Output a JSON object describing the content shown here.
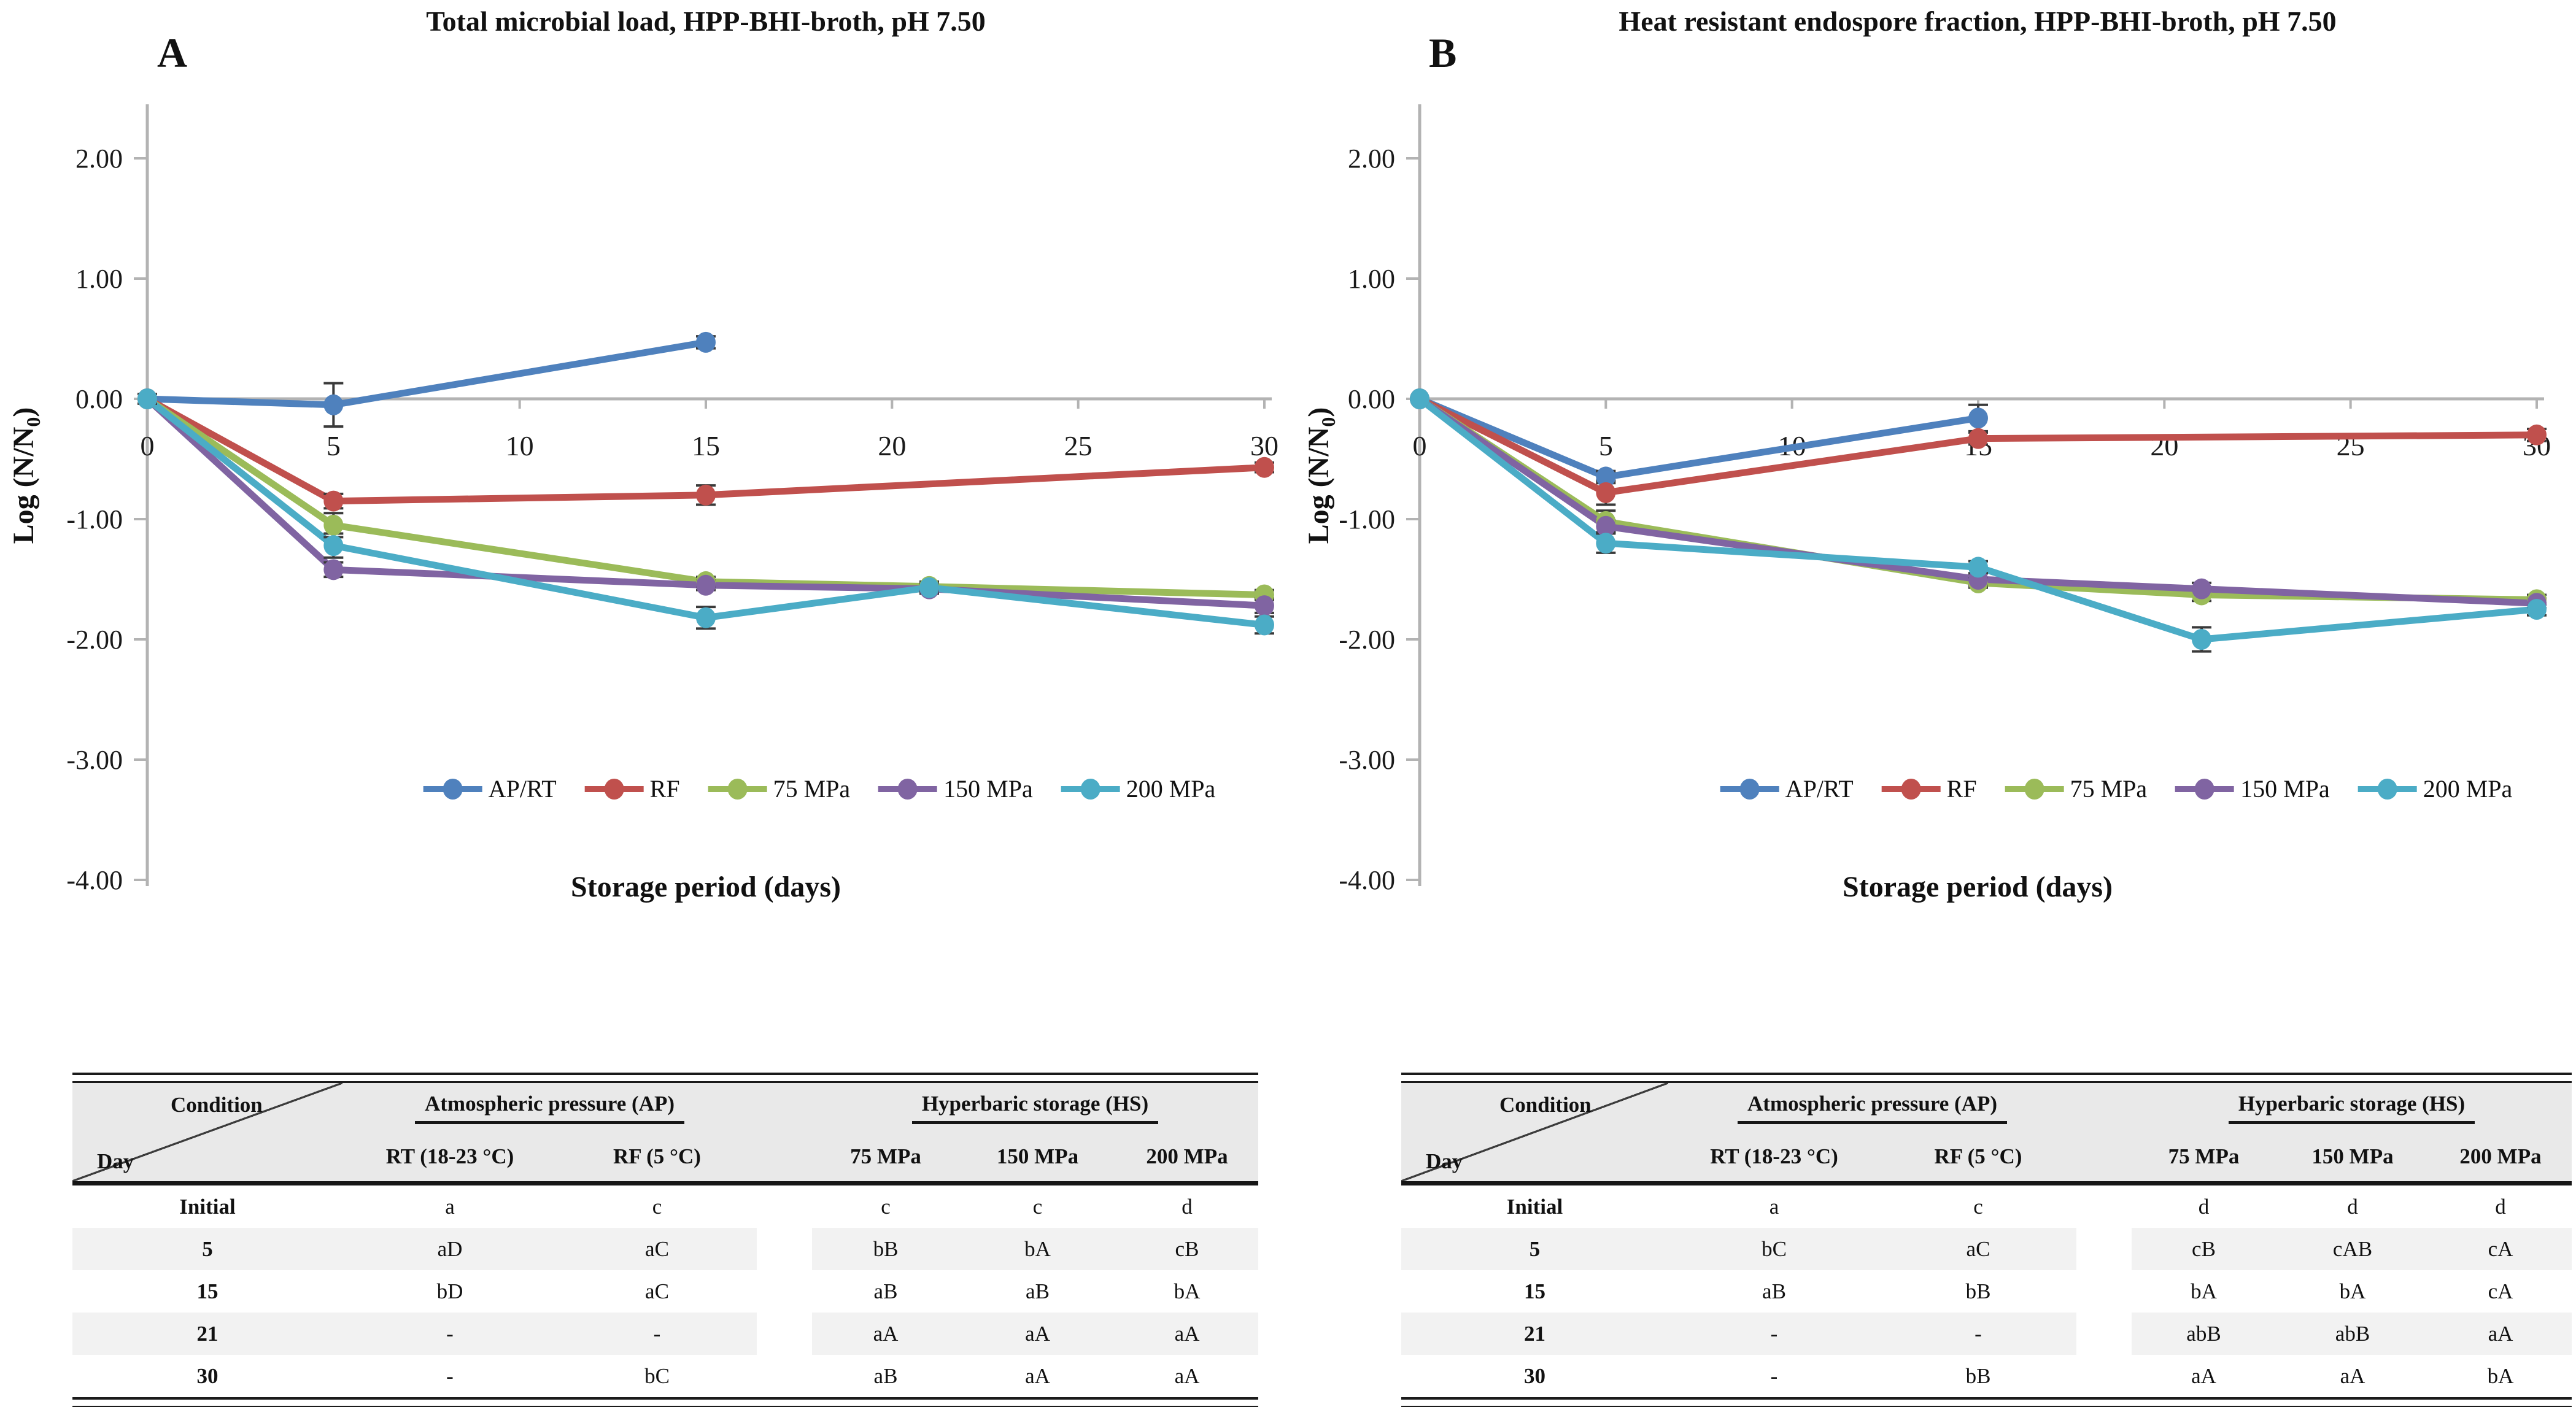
{
  "chart_data": [
    {
      "type": "line",
      "panel_label": "A",
      "title": "Total microbial load, HPP-BHI-broth, pH 7.50",
      "xlabel": "Storage period (days)",
      "ylabel": {
        "pre": "Log (N/N",
        "sub": "0",
        "post": ")"
      },
      "xlim": [
        0,
        30
      ],
      "ylim": [
        -4.0,
        2.6
      ],
      "x_ticks": [
        0,
        5,
        10,
        15,
        20,
        25,
        30
      ],
      "y_ticks": [
        "2.00",
        "1.00",
        "0.00",
        "-1.00",
        "-2.00",
        "-3.00",
        "-4.00"
      ],
      "grid": false,
      "legend_position": "bottom-center",
      "axis_color": "#B3B3B3",
      "error_bar_color": "#3a3a3a",
      "series": [
        {
          "name": "AP/RT",
          "color": "#4F81BD",
          "x": [
            0,
            5,
            15
          ],
          "y": [
            0.0,
            -0.05,
            0.47
          ],
          "err": [
            0.04,
            0.18,
            0.05
          ]
        },
        {
          "name": "RF",
          "color": "#C0504D",
          "x": [
            0,
            5,
            15,
            30
          ],
          "y": [
            0.0,
            -0.85,
            -0.8,
            -0.57
          ],
          "err": [
            0,
            0.06,
            0.08,
            0.04
          ]
        },
        {
          "name": "75 MPa",
          "color": "#9BBB59",
          "x": [
            0,
            5,
            15,
            21,
            30
          ],
          "y": [
            0.0,
            -1.05,
            -1.52,
            -1.56,
            -1.63
          ],
          "err": [
            0,
            0.1,
            0.04,
            0.04,
            0.04
          ]
        },
        {
          "name": "150 MPa",
          "color": "#8064A2",
          "x": [
            0,
            5,
            15,
            21,
            30
          ],
          "y": [
            0.0,
            -1.42,
            -1.55,
            -1.58,
            -1.72
          ],
          "err": [
            0,
            0.06,
            0.04,
            0.04,
            0.06
          ]
        },
        {
          "name": "200 MPa",
          "color": "#4BACC6",
          "x": [
            0,
            5,
            15,
            21,
            30
          ],
          "y": [
            0.0,
            -1.22,
            -1.82,
            -1.57,
            -1.88
          ],
          "err": [
            0,
            0.1,
            0.09,
            0.04,
            0.07
          ]
        }
      ]
    },
    {
      "type": "line",
      "panel_label": "B",
      "title": "Heat resistant endospore fraction, HPP-BHI-broth, pH 7.50",
      "xlabel": "Storage period (days)",
      "ylabel": {
        "pre": "Log (N/N",
        "sub": "0",
        "post": ")"
      },
      "xlim": [
        0,
        30
      ],
      "ylim": [
        -4.0,
        2.6
      ],
      "x_ticks": [
        0,
        5,
        10,
        15,
        20,
        25,
        30
      ],
      "y_ticks": [
        "2.00",
        "1.00",
        "0.00",
        "-1.00",
        "-2.00",
        "-3.00",
        "-4.00"
      ],
      "grid": false,
      "legend_position": "bottom-center",
      "axis_color": "#B3B3B3",
      "error_bar_color": "#3a3a3a",
      "series": [
        {
          "name": "AP/RT",
          "color": "#4F81BD",
          "x": [
            0,
            5,
            15
          ],
          "y": [
            0.0,
            -0.65,
            -0.16
          ],
          "err": [
            0,
            0.05,
            0.11
          ]
        },
        {
          "name": "RF",
          "color": "#C0504D",
          "x": [
            0,
            5,
            15,
            30
          ],
          "y": [
            0.0,
            -0.78,
            -0.33,
            -0.3
          ],
          "err": [
            0,
            0.1,
            0.05,
            0.05
          ]
        },
        {
          "name": "75 MPa",
          "color": "#9BBB59",
          "x": [
            0,
            5,
            15,
            21,
            30
          ],
          "y": [
            0.0,
            -1.02,
            -1.53,
            -1.63,
            -1.67
          ],
          "err": [
            0,
            0.09,
            0.04,
            0.05,
            0.04
          ]
        },
        {
          "name": "150 MPa",
          "color": "#8064A2",
          "x": [
            0,
            5,
            15,
            21,
            30
          ],
          "y": [
            0.0,
            -1.06,
            -1.5,
            -1.58,
            -1.7
          ],
          "err": [
            0,
            0.05,
            0.05,
            0.05,
            0.04
          ]
        },
        {
          "name": "200 MPa",
          "color": "#4BACC6",
          "x": [
            0,
            5,
            15,
            21,
            30
          ],
          "y": [
            0.0,
            -1.2,
            -1.4,
            -2.0,
            -1.75
          ],
          "err": [
            0,
            0.08,
            0.05,
            0.1,
            0.05
          ]
        }
      ]
    }
  ],
  "tables": {
    "header": {
      "corner_top": "Condition",
      "corner_bottom": "Day",
      "group_ap": "Atmospheric pressure (AP)",
      "group_hs": "Hyperbaric storage (HS)",
      "cols": [
        "RT (18-23 °C)",
        "RF (5 °C)",
        "75 MPa",
        "150 MPa",
        "200 MPa"
      ]
    },
    "left": {
      "shaded_rows": [
        1,
        3
      ],
      "rows": [
        [
          "Initial",
          "a",
          "c",
          "c",
          "c",
          "d"
        ],
        [
          "5",
          "aD",
          "aC",
          "bB",
          "bA",
          "cB"
        ],
        [
          "15",
          "bD",
          "aC",
          "aB",
          "aB",
          "bA"
        ],
        [
          "21",
          "-",
          "-",
          "aA",
          "aA",
          "aA"
        ],
        [
          "30",
          "-",
          "bC",
          "aB",
          "aA",
          "aA"
        ]
      ]
    },
    "right": {
      "shaded_rows": [
        1,
        3
      ],
      "rows": [
        [
          "Initial",
          "a",
          "c",
          "d",
          "d",
          "d"
        ],
        [
          "5",
          "bC",
          "aC",
          "cB",
          "cAB",
          "cA"
        ],
        [
          "15",
          "aB",
          "bB",
          "bA",
          "bA",
          "cA"
        ],
        [
          "21",
          "-",
          "-",
          "abB",
          "abB",
          "aA"
        ],
        [
          "30",
          "-",
          "bB",
          "aA",
          "aA",
          "bA"
        ]
      ]
    }
  }
}
